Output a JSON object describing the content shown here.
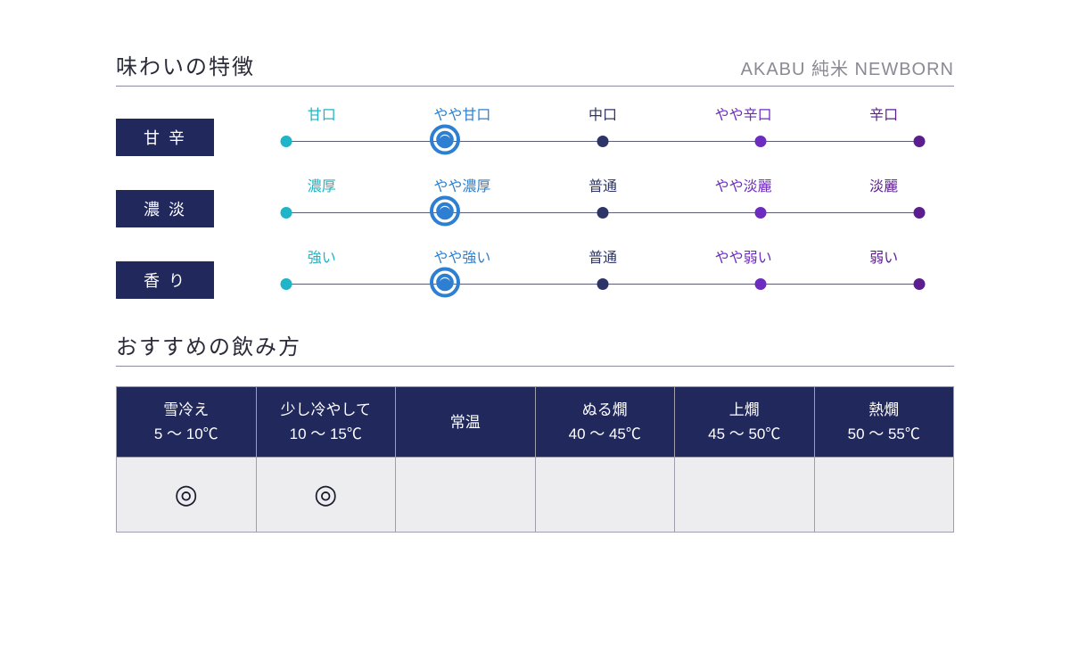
{
  "colors": {
    "pill_bg": "#21285b",
    "pill_fg": "#ffffff",
    "divider": "#8c8ca0",
    "scale_line": "#5c5c74",
    "dot1": "#1fb4c6",
    "dot2": "#2d7fd1",
    "dot3": "#2c3468",
    "dot4": "#6d2bbf",
    "dot5": "#5a1e8e",
    "selector_ring": "#2d7fd1",
    "cell_border": "#9e9eac",
    "cell_bg": "#ededef",
    "mark_color": "#1a1a2e",
    "product_name_color": "#8a8a94"
  },
  "taste_section": {
    "title": "味わいの特徴",
    "product": "AKABU 純米 NEWBORN",
    "label_fontsize": 16,
    "dot_diameter": 13,
    "selector_outer": 34,
    "selector_stroke": 4,
    "positions_pct": [
      5,
      27.5,
      50,
      72.5,
      95
    ],
    "rows": [
      {
        "name": "甘辛",
        "labels": [
          "甘口",
          "やや甘口",
          "中口",
          "やや辛口",
          "辛口"
        ],
        "selected_index": 1
      },
      {
        "name": "濃淡",
        "labels": [
          "濃厚",
          "やや濃厚",
          "普通",
          "やや淡麗",
          "淡麗"
        ],
        "selected_index": 1
      },
      {
        "name": "香り",
        "labels": [
          "強い",
          "やや強い",
          "普通",
          "やや弱い",
          "弱い"
        ],
        "selected_index": 1
      }
    ]
  },
  "temp_section": {
    "title": "おすすめの飲み方",
    "columns": [
      {
        "name": "雪冷え",
        "range": "5 ～ 10℃",
        "mark": "◎"
      },
      {
        "name": "少し冷やして",
        "range": "10 ～ 15℃",
        "mark": "◎"
      },
      {
        "name": "常温",
        "range": "",
        "mark": ""
      },
      {
        "name": "ぬる燗",
        "range": "40 ～ 45℃",
        "mark": ""
      },
      {
        "name": "上燗",
        "range": "45 ～ 50℃",
        "mark": ""
      },
      {
        "name": "熱燗",
        "range": "50 ～ 55℃",
        "mark": ""
      }
    ]
  }
}
